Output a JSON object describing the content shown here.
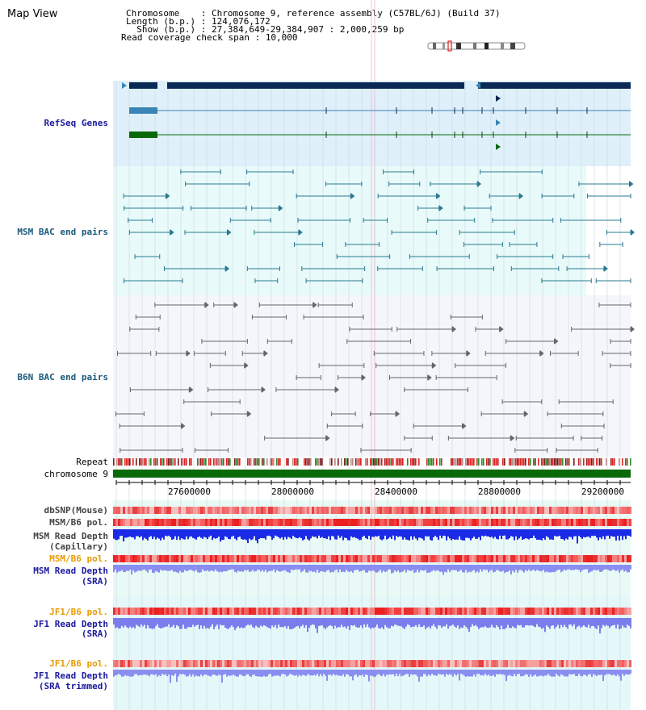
{
  "title": "Map View",
  "info": {
    "chromosome": "Chromosome    : Chromosome 9, reference assembly (C57BL/6J) (Build 37)",
    "length": "Length (b.p.) : 124,076,172",
    "show": "  Show (b.p.) : 27,384,649-29,384,907 : 2,000,259 bp",
    "span": "Read coverage check span : 10,000"
  },
  "tracks": {
    "refseq": "RefSeq Genes",
    "msm_bac": "MSM BAC end pairs",
    "b6n_bac": "B6N BAC end pairs",
    "repeat": "Repeat",
    "chromosome": "chromosome 9",
    "dbsnp": "dbSNP(Mouse)",
    "msm_b6_pol_1": "MSM/B6 pol.",
    "msm_depth_cap_1": "MSM Read Depth",
    "msm_depth_cap_2": "(Capillary)",
    "msm_b6_pol_2": "MSM/B6 pol.",
    "msm_depth_sra_1": "MSM Read Depth",
    "msm_depth_sra_2": "(SRA)",
    "jf1_pol_1": "JF1/B6 pol.",
    "jf1_depth_1": "JF1 Read Depth",
    "jf1_depth_2": "(SRA)",
    "jf1_pol_2": "JF1/B6 pol.",
    "jf1_trim_1": "JF1 Read Depth",
    "jf1_trim_2": "(SRA trimmed)"
  },
  "axis": {
    "ticks": [
      "27600000",
      "28000000",
      "28400000",
      "28800000",
      "29200000"
    ]
  },
  "colors": {
    "label_blue": "#1a1aa0",
    "label_teal": "#1a5a7a",
    "label_orange": "#e89a00",
    "gene_dark": "#0a2a55",
    "gene_mid": "#3a85b5",
    "gene_green": "#0a6a0a"
  }
}
